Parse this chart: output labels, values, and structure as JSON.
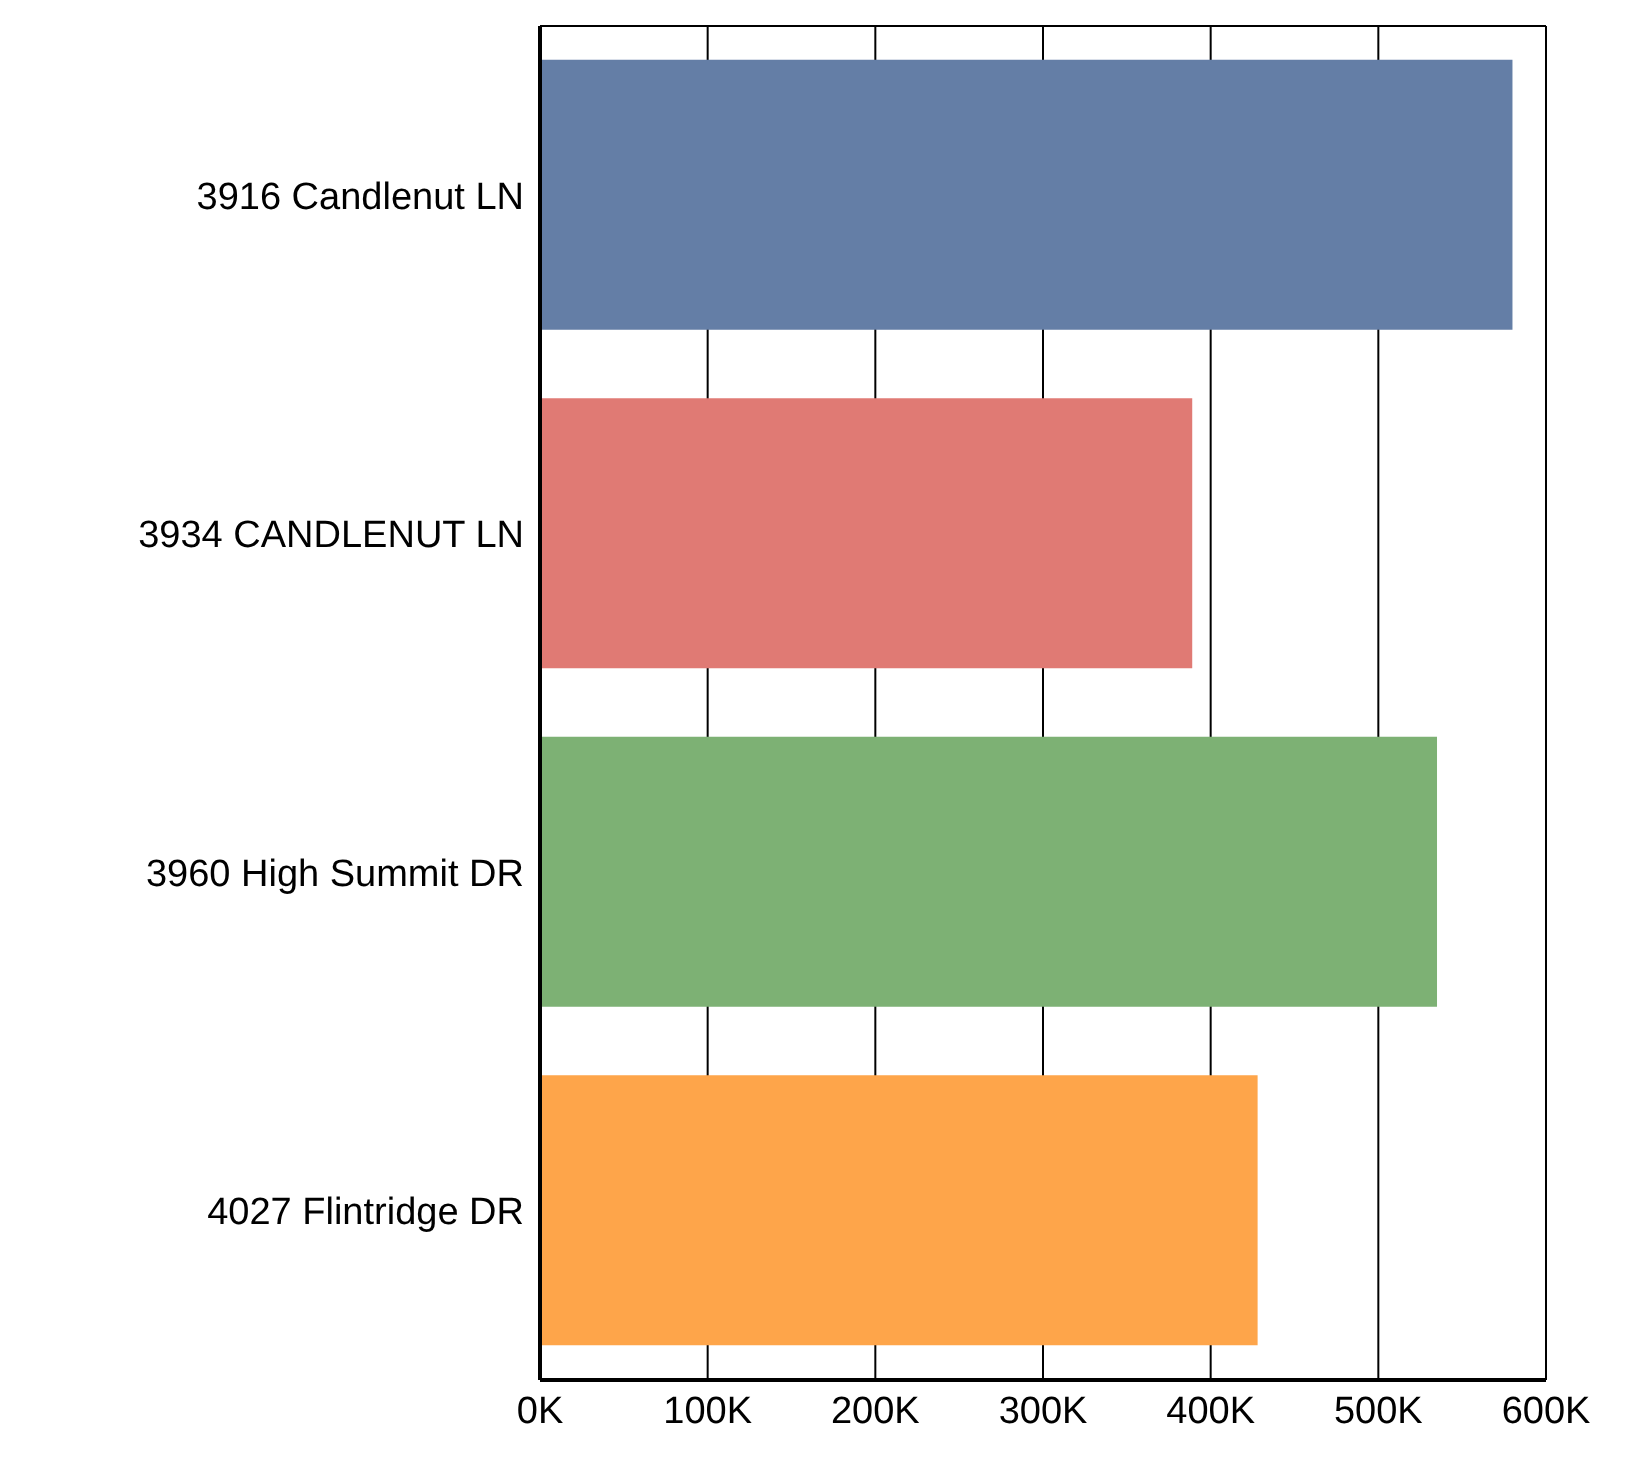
{
  "chart_data": {
    "type": "bar",
    "orientation": "horizontal",
    "categories": [
      "3916 Candlenut LN",
      "3934 CANDLENUT LN",
      "3960 High Summit DR",
      "4027 Flintridge DR"
    ],
    "values": [
      580000,
      389000,
      535000,
      428000
    ],
    "colors": [
      "#647ea6",
      "#e07a74",
      "#7db174",
      "#fea54a"
    ],
    "xlim": [
      0,
      600000
    ],
    "xticks": [
      {
        "value": 0,
        "label": "0K"
      },
      {
        "value": 100000,
        "label": "100K"
      },
      {
        "value": 200000,
        "label": "200K"
      },
      {
        "value": 300000,
        "label": "300K"
      },
      {
        "value": 400000,
        "label": "400K"
      },
      {
        "value": 500000,
        "label": "500K"
      },
      {
        "value": 600000,
        "label": "600K"
      }
    ],
    "grid": "x",
    "legend": false
  }
}
